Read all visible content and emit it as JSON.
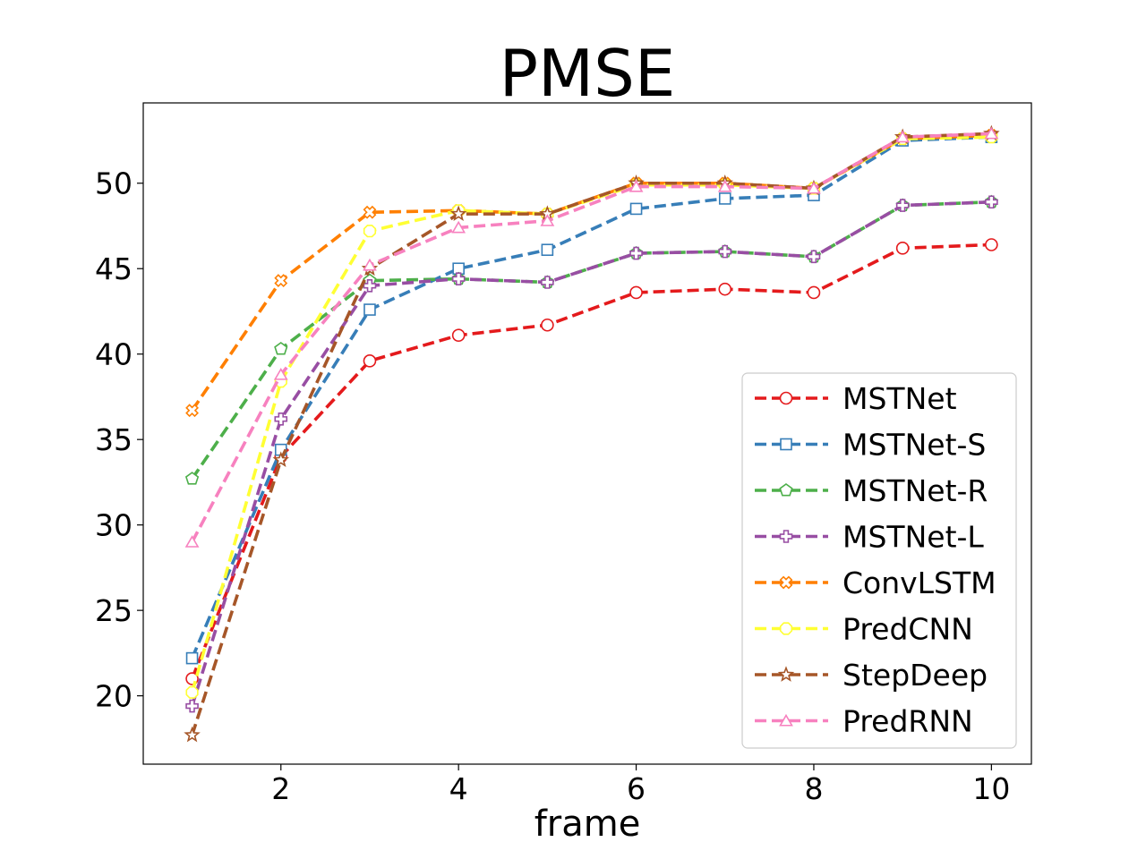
{
  "chart_data": {
    "type": "line",
    "title": "PMSE",
    "xlabel": "frame",
    "ylabel": "",
    "x": [
      1,
      2,
      3,
      4,
      5,
      6,
      7,
      8,
      9,
      10
    ],
    "xticks": [
      2,
      4,
      6,
      8,
      10
    ],
    "yticks": [
      20,
      25,
      30,
      35,
      40,
      45,
      50
    ],
    "xlim": [
      0.45,
      10.45
    ],
    "ylim": [
      16.0,
      54.7
    ],
    "grid": false,
    "legend_position": "lower-right",
    "series": [
      {
        "name": "MSTNet",
        "color": "#e41a1c",
        "marker": "circle",
        "values": [
          21.0,
          34.0,
          39.6,
          41.1,
          41.7,
          43.6,
          43.8,
          43.6,
          46.2,
          46.4
        ]
      },
      {
        "name": "MSTNet-S",
        "color": "#377eb8",
        "marker": "square",
        "values": [
          22.2,
          34.4,
          42.6,
          45.0,
          46.1,
          48.5,
          49.1,
          49.3,
          52.5,
          52.7
        ]
      },
      {
        "name": "MSTNet-R",
        "color": "#4daf4a",
        "marker": "pentagon",
        "values": [
          32.7,
          40.3,
          44.3,
          44.4,
          44.2,
          45.9,
          46.0,
          45.7,
          48.7,
          48.9
        ]
      },
      {
        "name": "MSTNet-L",
        "color": "#984ea3",
        "marker": "plus",
        "values": [
          19.4,
          36.2,
          44.0,
          44.4,
          44.2,
          45.9,
          46.0,
          45.7,
          48.7,
          48.9
        ]
      },
      {
        "name": "ConvLSTM",
        "color": "#ff7f00",
        "marker": "x-filled",
        "values": [
          36.7,
          44.3,
          48.3,
          48.4,
          48.2,
          50.0,
          50.0,
          49.7,
          52.6,
          52.8
        ]
      },
      {
        "name": "PredCNN",
        "color": "#ffff33",
        "marker": "octagon",
        "values": [
          20.2,
          38.4,
          47.2,
          48.4,
          48.2,
          49.9,
          49.9,
          49.7,
          52.6,
          52.7
        ]
      },
      {
        "name": "StepDeep",
        "color": "#a65628",
        "marker": "star",
        "values": [
          17.7,
          33.8,
          45.0,
          48.2,
          48.2,
          50.0,
          50.0,
          49.7,
          52.7,
          52.9
        ]
      },
      {
        "name": "PredRNN",
        "color": "#f781bf",
        "marker": "triangle",
        "values": [
          29.0,
          38.8,
          45.2,
          47.4,
          47.8,
          49.8,
          49.8,
          49.7,
          52.7,
          52.9
        ]
      }
    ]
  }
}
